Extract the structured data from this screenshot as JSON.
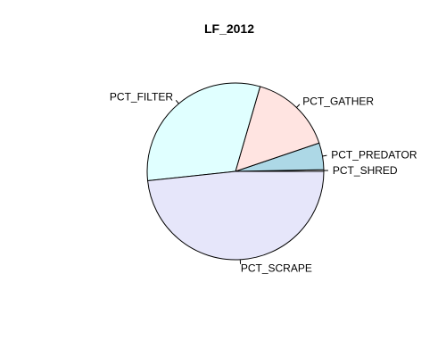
{
  "chart_data": {
    "type": "pie",
    "title": "LF_2012",
    "start_angle_deg": 0,
    "direction": "counterclockwise",
    "slices": [
      {
        "label": "PCT_SHRED",
        "value": 0.3,
        "color": "#ffffff"
      },
      {
        "label": "PCT_PREDATOR",
        "value": 4.9,
        "color": "#add8e6"
      },
      {
        "label": "PCT_GATHER",
        "value": 15.3,
        "color": "#ffe4e1"
      },
      {
        "label": "PCT_FILTER",
        "value": 31.2,
        "color": "#e0ffff"
      },
      {
        "label": "PCT_SCRAPE",
        "value": 48.3,
        "color": "#e6e6fa"
      }
    ]
  }
}
